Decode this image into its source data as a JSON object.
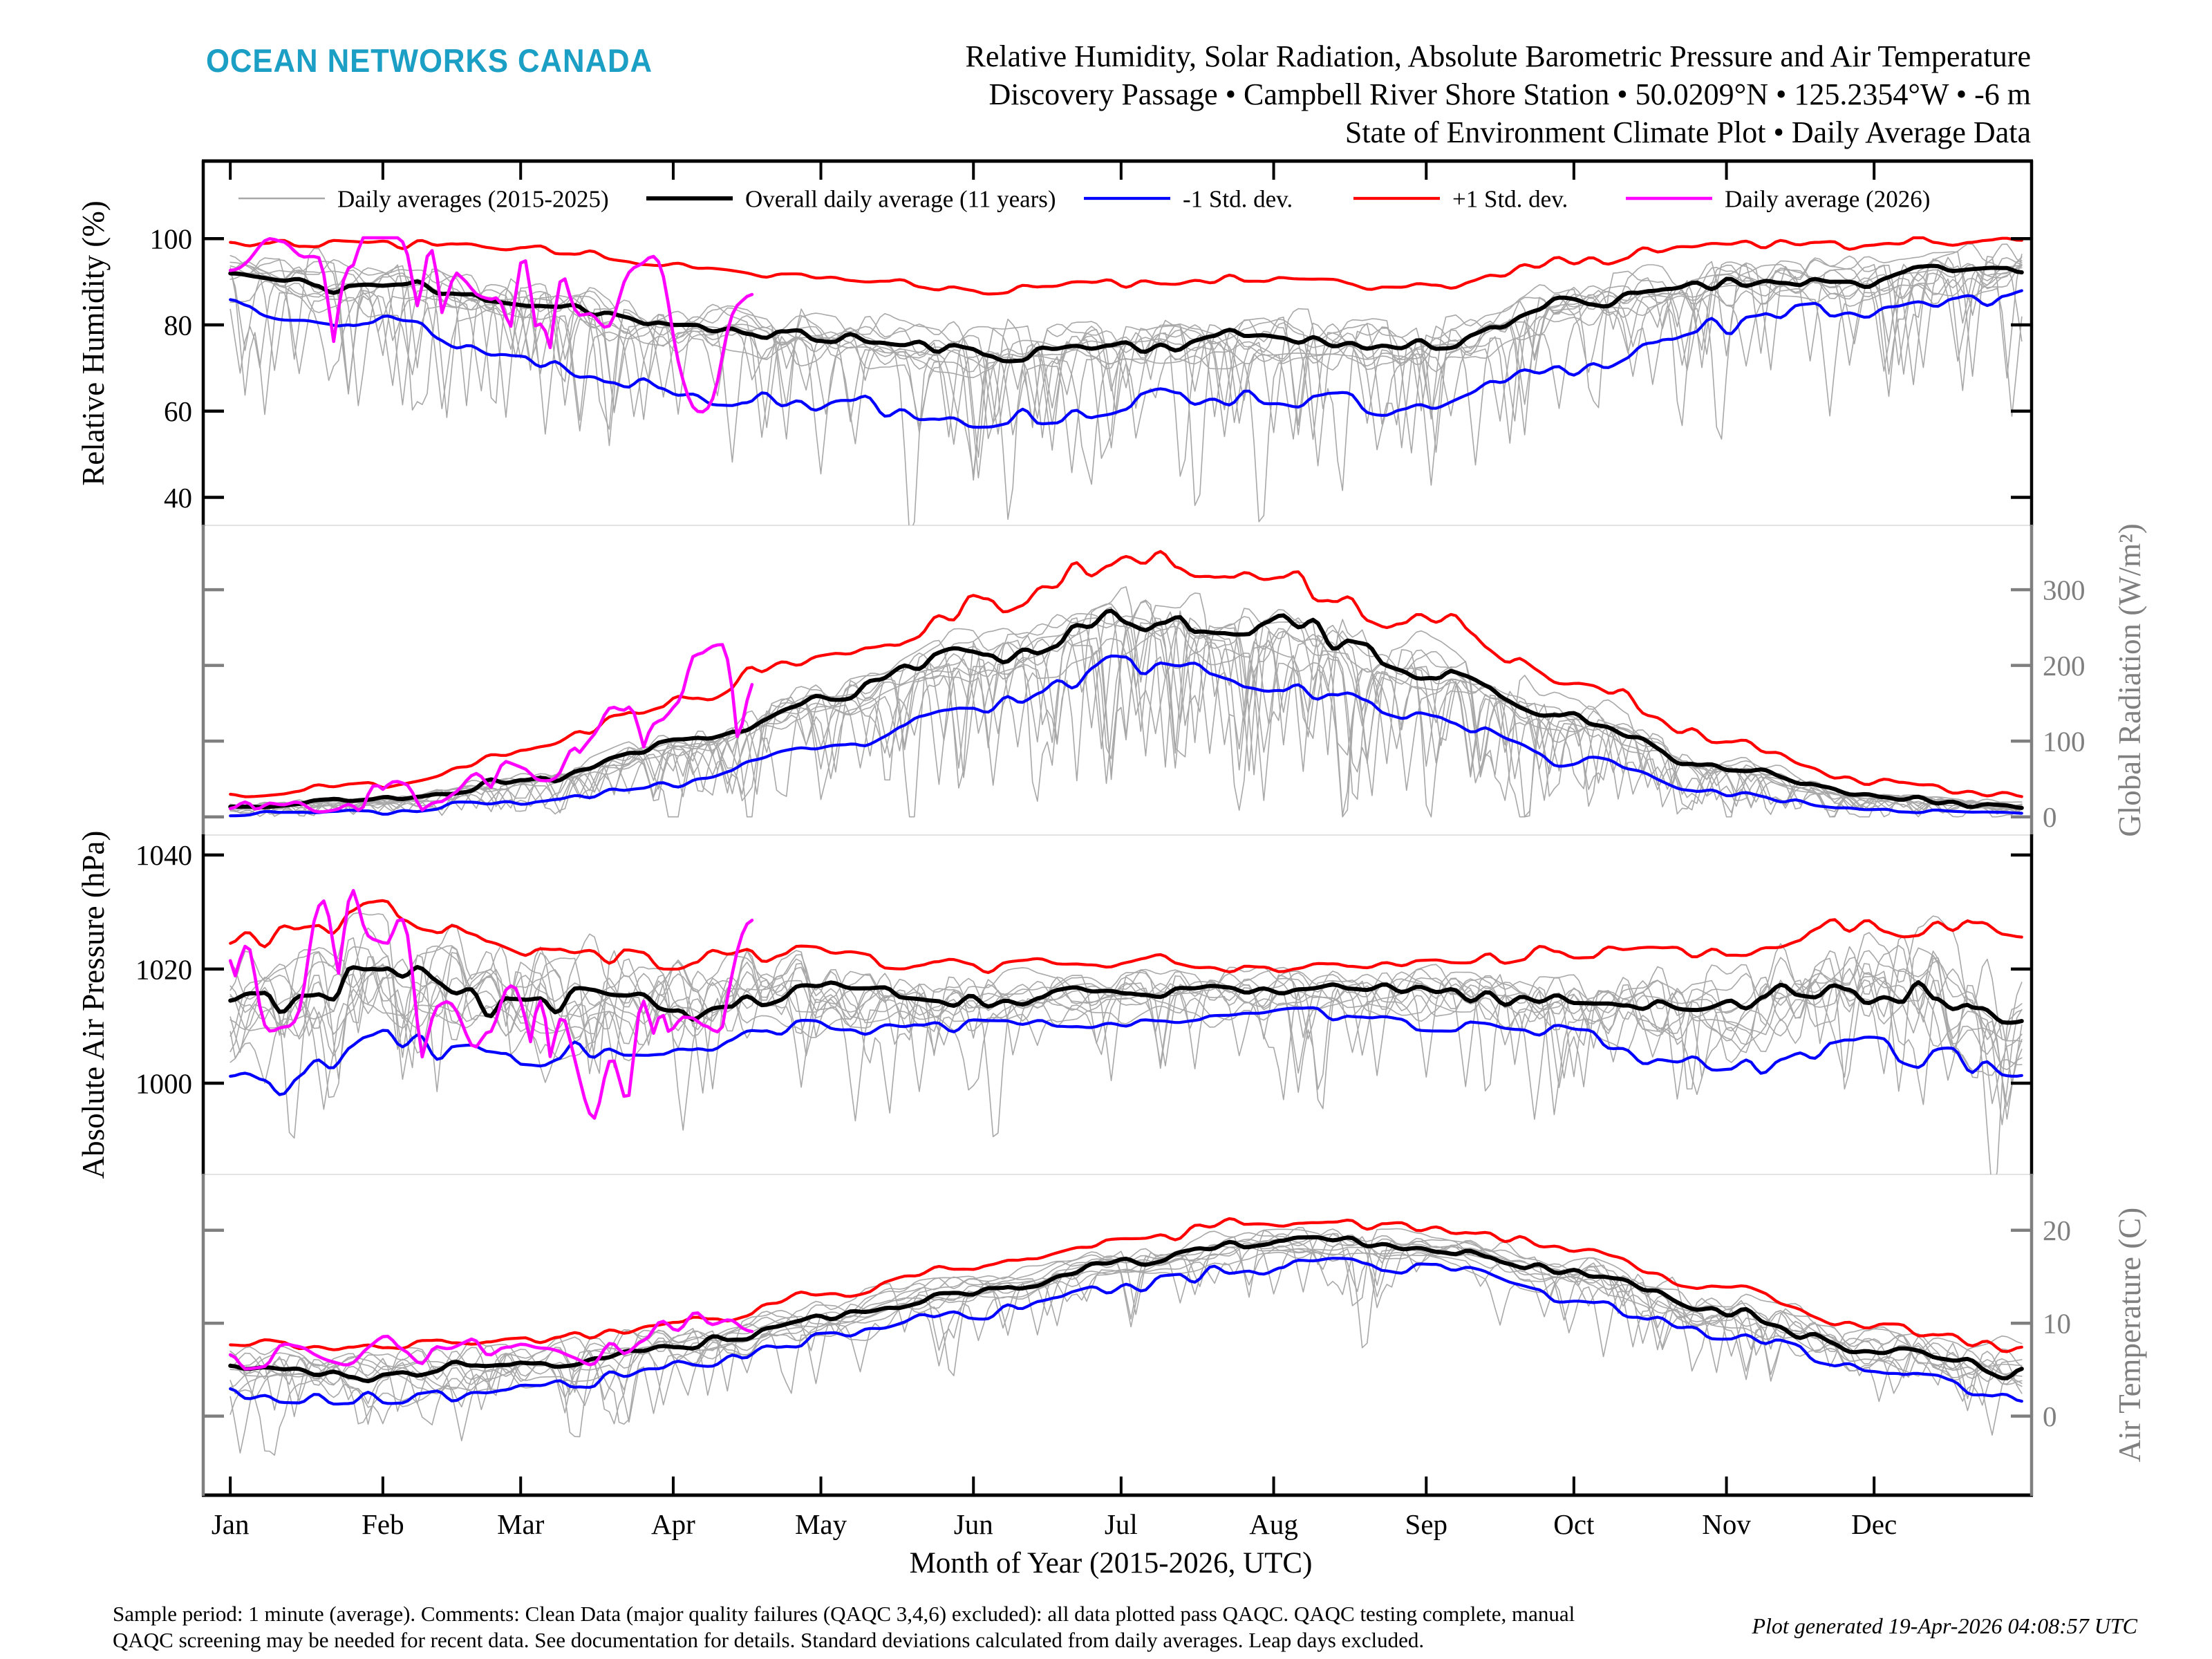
{
  "header": {
    "logo": "OCEAN NETWORKS CANADA",
    "logo_color": "#1C9FC4",
    "title_lines": [
      "Relative Humidity, Solar Radiation, Absolute Barometric Pressure and Air Temperature",
      "Discovery Passage • Campbell River Shore Station • 50.0209°N • 125.2354°W • -6 m",
      "State of Environment Climate Plot • Daily Average Data"
    ]
  },
  "legend": [
    {
      "label": "Daily averages (2015-2025)",
      "color": "#A8A8A8",
      "line_width": 2.5
    },
    {
      "label": "Overall daily average (11 years)",
      "color": "#000000",
      "line_width": 6
    },
    {
      "label": "-1 Std. dev.",
      "color": "#0000FF",
      "line_width": 4.2
    },
    {
      "label": "+1 Std. dev.",
      "color": "#FF0000",
      "line_width": 4.2
    },
    {
      "label": "Daily average (2026)",
      "color": "#FF00FF",
      "line_width": 4.6
    }
  ],
  "footer": {
    "line1": "Sample period: 1 minute (average). Comments: Clean Data (major quality failures (QAQC 3,4,6) excluded): all data plotted pass QAQC. QAQC testing complete, manual",
    "line2": "QAQC screening may be needed for recent data. See documentation for details. Standard deviations calculated from daily averages. Leap days excluded.",
    "generated": "Plot generated 19-Apr-2026 04:08:57 UTC"
  },
  "chart_data": {
    "type": "line",
    "x": {
      "label": "Month of Year (2015-2026, UTC)",
      "months": [
        "Jan",
        "Feb",
        "Mar",
        "Apr",
        "May",
        "Jun",
        "Jul",
        "Aug",
        "Sep",
        "Oct",
        "Nov",
        "Dec"
      ],
      "month_start_days": [
        0,
        31,
        59,
        90,
        120,
        151,
        181,
        212,
        243,
        273,
        304,
        334
      ],
      "days_per_year": 365,
      "pad_days_left": 5.5,
      "pad_days_right": 1
    },
    "style": {
      "mean_color": "#000000",
      "plus_color": "#FF0000",
      "minus_color": "#0000FF",
      "y2026_color": "#FF00FF",
      "grey_color": "#A8A8A8",
      "mean_width": 6,
      "plus_width": 4.2,
      "minus_width": 4.2,
      "y2026_width": 4.6,
      "grey_width": 1.6,
      "axis_grey": "#7F7F7F",
      "separator_color": "#E3E3E3"
    },
    "panels": [
      {
        "id": "relative-humidity",
        "axis_label": "Relative Humidity (%)",
        "side": "left",
        "axis_color": "#000000",
        "ticks": [
          40,
          60,
          80,
          100
        ],
        "range": [
          33.5,
          118
        ],
        "mean": {
          "controls": [
            92,
            89,
            85,
            80,
            77,
            74,
            76,
            77,
            75,
            85,
            90,
            91,
            93
          ],
          "amp": 3.2,
          "seed": 11,
          "clamp": [
            null,
            100.2
          ]
        },
        "plus": {
          "controls": [
            99.3,
            99.3,
            97.5,
            94.5,
            91.5,
            88.5,
            90,
            90.5,
            89,
            95,
            98.5,
            99.3,
            99.3
          ],
          "amp": 2.2,
          "seed": 12,
          "clamp": [
            null,
            100.2
          ]
        },
        "minus": {
          "controls": [
            85,
            80,
            71,
            65,
            62,
            59,
            61,
            62,
            60,
            70,
            81,
            84,
            86
          ],
          "amp": 4.5,
          "seed": 13,
          "clamp": [
            null,
            100.2
          ]
        },
        "y2026": {
          "controls": [
            97,
            99,
            95,
            99,
            99,
            90,
            98,
            80,
            96,
            62,
            88
          ],
          "days": 107,
          "amp": 9,
          "seed": 14,
          "clamp": [
            null,
            100.2
          ],
          "spike": {
            "p": 0.06,
            "d": [
              8,
              22
            ]
          }
        },
        "grey": {
          "count": 11,
          "amp": 6.5,
          "seed": 15,
          "offset": 3,
          "clamp": [
            null,
            100.3
          ],
          "spike": {
            "p": 0.05,
            "d": [
              10,
              30
            ]
          }
        }
      },
      {
        "id": "global-radiation",
        "axis_label": "Global Radiation (W/m²)",
        "side": "right",
        "axis_color": "#7F7F7F",
        "ticks": [
          0,
          100,
          200,
          300
        ],
        "range": [
          -24,
          385
        ],
        "mean": {
          "controls": [
            14,
            22,
            48,
            95,
            155,
            215,
            262,
            248,
            195,
            130,
            65,
            26,
            14
          ],
          "amp": 6,
          "amp_rel": 0.1,
          "seed": 21,
          "clamp": [
            0,
            null
          ]
        },
        "plus": {
          "controls": [
            30,
            45,
            88,
            150,
            220,
            288,
            335,
            318,
            262,
            180,
            95,
            46,
            30
          ],
          "amp": 7,
          "amp_rel": 0.1,
          "seed": 22,
          "clamp": [
            2,
            null
          ]
        },
        "minus": {
          "controls": [
            4,
            8,
            20,
            45,
            90,
            145,
            200,
            180,
            130,
            78,
            30,
            9,
            4
          ],
          "amp": 5,
          "amp_rel": 0.12,
          "seed": 23,
          "clamp": [
            0,
            null
          ]
        },
        "y2026": {
          "controls": [
            12,
            22,
            14,
            38,
            28,
            62,
            50,
            95,
            125,
            175,
            205
          ],
          "days": 107,
          "amp": 8,
          "amp_rel": 0.45,
          "seed": 24,
          "clamp": [
            2,
            null
          ],
          "spike": {
            "p": 0.1,
            "dfrac": [
              0.2,
              0.7
            ]
          }
        },
        "grey": {
          "count": 11,
          "amp": 6,
          "amp_rel": 0.16,
          "seed": 25,
          "scale": 0.12,
          "clamp": [
            0,
            null
          ],
          "spike": {
            "p": 0.09,
            "dfrac": [
              0.3,
              0.8
            ]
          }
        }
      },
      {
        "id": "absolute-air-pressure",
        "axis_label": "Absolute Air Pressure (hPa)",
        "side": "left",
        "axis_color": "#000000",
        "ticks": [
          1000,
          1020,
          1040
        ],
        "range": [
          984,
          1043.5
        ],
        "mean": {
          "controls": [
            1013,
            1018,
            1014,
            1014,
            1016,
            1015,
            1016,
            1016,
            1016,
            1015,
            1013,
            1017,
            1013
          ],
          "amp_winter": 6,
          "amp_summer": 1.6,
          "seed": 31
        },
        "plus": {
          "controls": [
            1026,
            1030,
            1024,
            1022,
            1022,
            1021,
            1021,
            1020,
            1021,
            1023,
            1023,
            1028,
            1026
          ],
          "amp_winter": 5,
          "amp_summer": 1.8,
          "seed": 32
        },
        "minus": {
          "controls": [
            1000,
            1006,
            1005,
            1006,
            1009,
            1010,
            1011,
            1012,
            1011,
            1008,
            1003,
            1006,
            1000
          ],
          "amp_winter": 5,
          "amp_summer": 1.8,
          "seed": 33
        },
        "y2026": {
          "controls": [
            1025,
            1012,
            1031,
            1026,
            1017,
            1006,
            1024,
            997,
            1019,
            1012,
            1021
          ],
          "days": 107,
          "amp": 11,
          "seed": 34,
          "spike": {
            "p": 0.05,
            "d": [
              5,
              14
            ]
          }
        },
        "grey": {
          "count": 11,
          "amp_winter": 16,
          "amp_summer": 5,
          "seed": 35,
          "offset": 3,
          "spike": {
            "p": 0.03,
            "d": [
              6,
              18
            ]
          }
        }
      },
      {
        "id": "air-temperature",
        "axis_label": "Air Temperature (C)",
        "side": "right",
        "axis_color": "#7F7F7F",
        "ticks": [
          0,
          10,
          20
        ],
        "range": [
          -8.5,
          26
        ],
        "mean": {
          "controls": [
            5,
            4.6,
            5.6,
            7.6,
            10.5,
            13.5,
            16.5,
            18.6,
            18.2,
            15.4,
            11.2,
            7.2,
            4.8
          ],
          "amp": 1.1,
          "seed": 41
        },
        "plus": {
          "controls": [
            7.8,
            7.4,
            8.2,
            10.2,
            13.2,
            16.2,
            19.2,
            21,
            20.6,
            17.8,
            13.6,
            9.8,
            7.4
          ],
          "amp": 1.1,
          "seed": 42
        },
        "minus": {
          "controls": [
            2.2,
            1.6,
            3.2,
            5.2,
            8,
            11,
            14,
            16.4,
            15.8,
            12.8,
            8.6,
            4.6,
            1.8
          ],
          "amp": 1.5,
          "seed": 43
        },
        "y2026": {
          "controls": [
            6,
            7.6,
            5.2,
            7.8,
            6.4,
            8.8,
            7.2,
            6.2,
            8,
            9,
            9.4
          ],
          "days": 107,
          "amp": 2.6,
          "seed": 44
        },
        "grey": {
          "count": 11,
          "amp_winter": 3.5,
          "amp_summer": 1.4,
          "seed": 45,
          "offset": 1.5,
          "spike": {
            "p": 0.04,
            "d": [
              2,
              7
            ]
          }
        }
      }
    ]
  }
}
